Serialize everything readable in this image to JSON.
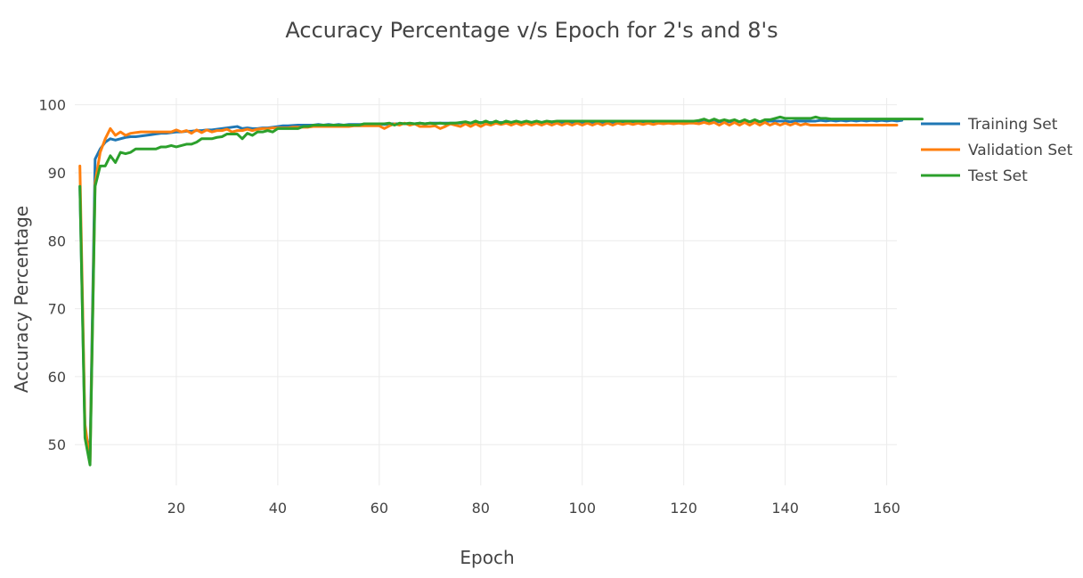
{
  "chart_data": {
    "type": "line",
    "title": "Accuracy Percentage v/s Epoch for 2's and 8's",
    "xlabel": "Epoch",
    "ylabel": "Accuracy Percentage",
    "xlim": [
      0,
      162
    ],
    "ylim": [
      44,
      101
    ],
    "xticks": [
      20,
      40,
      60,
      80,
      100,
      120,
      140,
      160
    ],
    "yticks": [
      50,
      60,
      70,
      80,
      90,
      100
    ],
    "grid": true,
    "legend_position": "top-right",
    "x_start": 1,
    "series": [
      {
        "name": "Training Set",
        "color": "#1f77b4",
        "values": [
          88,
          52,
          49,
          92,
          93.5,
          94.5,
          95,
          94.8,
          95,
          95.2,
          95.3,
          95.3,
          95.4,
          95.5,
          95.6,
          95.7,
          95.8,
          95.8,
          95.9,
          96,
          96,
          96.1,
          96.1,
          96.2,
          96.2,
          96.3,
          96.3,
          96.4,
          96.5,
          96.6,
          96.7,
          96.8,
          96.5,
          96.6,
          96.5,
          96.5,
          96.6,
          96.6,
          96.7,
          96.8,
          96.9,
          96.9,
          96.95,
          97,
          97,
          97,
          97,
          97.1,
          97,
          97.1,
          97,
          97.1,
          97,
          97.1,
          97.1,
          97.1,
          97.1,
          97.2,
          97.2,
          97.2,
          97.1,
          97.2,
          97.2,
          97.2,
          97.2,
          97.2,
          97.2,
          97.3,
          97.2,
          97.3,
          97.3,
          97.3,
          97.3,
          97.3,
          97.3,
          97.3,
          97.4,
          97.3,
          97.4,
          97.4,
          97.4,
          97.4,
          97.4,
          97.4,
          97.4,
          97.4,
          97.4,
          97.4,
          97.4,
          97.4,
          97.4,
          97.4,
          97.4,
          97.4,
          97.4,
          97.4,
          97.4,
          97.4,
          97.4,
          97.4,
          97.4,
          97.4,
          97.4,
          97.4,
          97.4,
          97.4,
          97.4,
          97.4,
          97.4,
          97.4,
          97.4,
          97.4,
          97.4,
          97.4,
          97.4,
          97.4,
          97.4,
          97.4,
          97.4,
          97.4,
          97.4,
          97.5,
          97.5,
          97.5,
          97.5,
          97.5,
          97.5,
          97.5,
          97.5,
          97.5,
          97.5,
          97.5,
          97.5,
          97.5,
          97.5,
          97.5,
          97.6,
          97.6,
          97.6,
          97.6,
          97.5,
          97.6,
          97.6,
          97.6,
          97.6,
          97.6,
          97.7,
          97.6,
          97.7,
          97.6,
          97.7,
          97.6,
          97.7,
          97.6,
          97.7,
          97.6,
          97.7,
          97.6,
          97.7,
          97.6,
          97.7,
          97.6,
          97.7
        ]
      },
      {
        "name": "Validation Set",
        "color": "#ff7f0e",
        "values": [
          91,
          53,
          47.5,
          88.5,
          93,
          95,
          96.5,
          95.5,
          96,
          95.5,
          95.8,
          95.9,
          96,
          96,
          96,
          96,
          96,
          96,
          96,
          96.3,
          96,
          96.2,
          95.8,
          96.3,
          95.9,
          96.3,
          96,
          96.2,
          96.2,
          96.4,
          96,
          96.2,
          96.2,
          96.4,
          96.2,
          96.4,
          96.5,
          96.5,
          96.6,
          96.6,
          96.6,
          96.6,
          96.7,
          96.7,
          96.7,
          96.7,
          96.8,
          96.8,
          96.8,
          96.8,
          96.8,
          96.8,
          96.8,
          96.8,
          96.9,
          96.9,
          96.9,
          96.9,
          96.9,
          96.9,
          96.5,
          96.9,
          97.2,
          97,
          97.3,
          97,
          97.2,
          96.8,
          96.8,
          96.8,
          96.9,
          96.5,
          96.8,
          97.2,
          97,
          96.8,
          97.2,
          96.8,
          97.2,
          96.8,
          97.2,
          97,
          97.3,
          97.1,
          97.3,
          97,
          97.3,
          97,
          97.3,
          97,
          97.3,
          97,
          97.3,
          97,
          97.3,
          97,
          97.3,
          97,
          97.3,
          97,
          97.3,
          97,
          97.3,
          97,
          97.3,
          97,
          97.3,
          97.1,
          97.3,
          97.1,
          97.3,
          97.1,
          97.3,
          97.1,
          97.3,
          97.2,
          97.3,
          97.2,
          97.3,
          97.2,
          97.3,
          97.3,
          97.2,
          97.4,
          97.2,
          97.4,
          97,
          97.4,
          97,
          97.4,
          97,
          97.4,
          97,
          97.4,
          97,
          97.4,
          97,
          97.3,
          97,
          97.3,
          97,
          97.3,
          97,
          97.2,
          97,
          97,
          97,
          97,
          97,
          97,
          97,
          97,
          97,
          97,
          97,
          97,
          97,
          97,
          97,
          97,
          97,
          97
        ]
      },
      {
        "name": "Test Set",
        "color": "#2ca02c",
        "values": [
          88,
          51,
          47,
          88,
          91,
          91,
          92.5,
          91.5,
          93,
          92.8,
          93,
          93.5,
          93.5,
          93.5,
          93.5,
          93.5,
          93.8,
          93.8,
          94,
          93.8,
          94,
          94.2,
          94.2,
          94.5,
          95,
          95,
          95,
          95.2,
          95.3,
          95.7,
          95.7,
          95.7,
          95,
          95.8,
          95.5,
          96,
          96,
          96.2,
          96,
          96.5,
          96.5,
          96.5,
          96.5,
          96.5,
          96.8,
          96.8,
          97,
          97,
          97,
          97,
          97,
          97,
          97,
          97,
          97,
          97,
          97.2,
          97.2,
          97.2,
          97.2,
          97.2,
          97.3,
          97,
          97.3,
          97.2,
          97.3,
          97.2,
          97.3,
          97.2,
          97.3,
          97.2,
          97.3,
          97.2,
          97.3,
          97.3,
          97.4,
          97.5,
          97.3,
          97.6,
          97.3,
          97.6,
          97.3,
          97.6,
          97.3,
          97.6,
          97.4,
          97.6,
          97.4,
          97.6,
          97.4,
          97.6,
          97.4,
          97.6,
          97.5,
          97.6,
          97.6,
          97.6,
          97.6,
          97.6,
          97.6,
          97.6,
          97.6,
          97.6,
          97.6,
          97.6,
          97.6,
          97.6,
          97.6,
          97.6,
          97.6,
          97.6,
          97.6,
          97.6,
          97.6,
          97.6,
          97.6,
          97.6,
          97.6,
          97.6,
          97.6,
          97.6,
          97.6,
          97.7,
          97.9,
          97.6,
          97.9,
          97.6,
          97.8,
          97.6,
          97.8,
          97.5,
          97.8,
          97.5,
          97.8,
          97.5,
          97.8,
          97.8,
          98,
          98.2,
          98,
          98,
          98,
          98,
          98,
          98,
          98.2,
          98,
          98,
          97.9,
          97.9,
          97.9,
          97.9,
          97.9,
          97.9,
          97.9,
          97.9,
          97.9,
          97.9,
          97.9,
          97.9,
          97.9,
          97.9,
          97.9,
          97.9,
          97.9,
          97.9,
          97.9
        ]
      }
    ]
  }
}
